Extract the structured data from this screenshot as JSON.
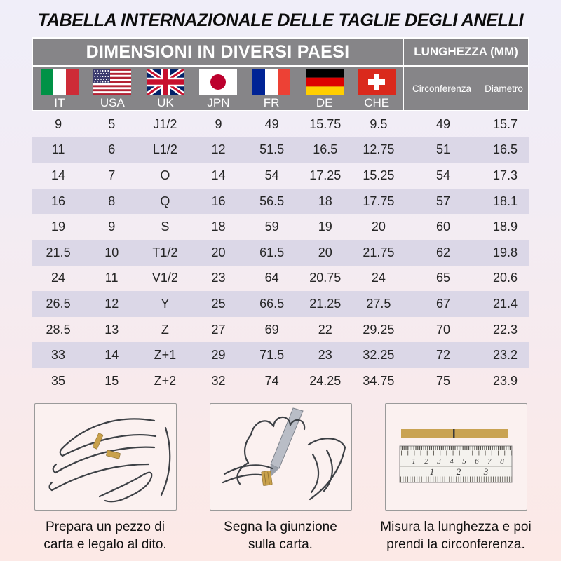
{
  "chart_data": {
    "type": "table",
    "title": "TABELLA INTERNAZIONALE DELLE TAGLIE DEGLI ANELLI",
    "group_headers": {
      "countries": "DIMENSIONI IN DIVERSI PAESI",
      "length": "LUNGHEZZA (MM)"
    },
    "columns": [
      {
        "code": "IT",
        "flag_icon": "italy-flag"
      },
      {
        "code": "USA",
        "flag_icon": "usa-flag"
      },
      {
        "code": "UK",
        "flag_icon": "uk-flag"
      },
      {
        "code": "JPN",
        "flag_icon": "japan-flag"
      },
      {
        "code": "FR",
        "flag_icon": "france-flag"
      },
      {
        "code": "DE",
        "flag_icon": "germany-flag"
      },
      {
        "code": "CHE",
        "flag_icon": "switzerland-flag"
      }
    ],
    "length_columns": [
      "Circonferenza",
      "Diametro"
    ],
    "rows": [
      [
        "9",
        "5",
        "J1/2",
        "9",
        "49",
        "15.75",
        "9.5",
        "49",
        "15.7"
      ],
      [
        "11",
        "6",
        "L1/2",
        "12",
        "51.5",
        "16.5",
        "12.75",
        "51",
        "16.5"
      ],
      [
        "14",
        "7",
        "O",
        "14",
        "54",
        "17.25",
        "15.25",
        "54",
        "17.3"
      ],
      [
        "16",
        "8",
        "Q",
        "16",
        "56.5",
        "18",
        "17.75",
        "57",
        "18.1"
      ],
      [
        "19",
        "9",
        "S",
        "18",
        "59",
        "19",
        "20",
        "60",
        "18.9"
      ],
      [
        "21.5",
        "10",
        "T1/2",
        "20",
        "61.5",
        "20",
        "21.75",
        "62",
        "19.8"
      ],
      [
        "24",
        "11",
        "V1/2",
        "23",
        "64",
        "20.75",
        "24",
        "65",
        "20.6"
      ],
      [
        "26.5",
        "12",
        "Y",
        "25",
        "66.5",
        "21.25",
        "27.5",
        "67",
        "21.4"
      ],
      [
        "28.5",
        "13",
        "Z",
        "27",
        "69",
        "22",
        "29.25",
        "70",
        "22.3"
      ],
      [
        "33",
        "14",
        "Z+1",
        "29",
        "71.5",
        "23",
        "32.25",
        "72",
        "23.2"
      ],
      [
        "35",
        "15",
        "Z+2",
        "32",
        "74",
        "24.25",
        "34.75",
        "75",
        "23.9"
      ]
    ]
  },
  "instructions": [
    {
      "illustration": "hand-with-paper-strip",
      "caption_line1": "Prepara un pezzo di",
      "caption_line2": "carta e legalo al dito."
    },
    {
      "illustration": "pen-marking-junction",
      "caption_line1": "Segna la giunzione",
      "caption_line2": "sulla carta."
    },
    {
      "illustration": "ruler-measuring-strip",
      "caption_line1": "Misura la lunghezza e poi",
      "caption_line2": "prendi la circonferenza.",
      "ruler": {
        "cm": [
          "1",
          "2",
          "3",
          "4",
          "5",
          "6",
          "7",
          "8"
        ],
        "inch": [
          "1",
          "2",
          "3"
        ]
      }
    }
  ],
  "colors": {
    "header_bg": "#868588",
    "stripe": "#dbd7e7",
    "background_top": "#f0eef9",
    "background_bottom": "#fce9e6",
    "paper_strip_gold": "#c9a14b"
  }
}
